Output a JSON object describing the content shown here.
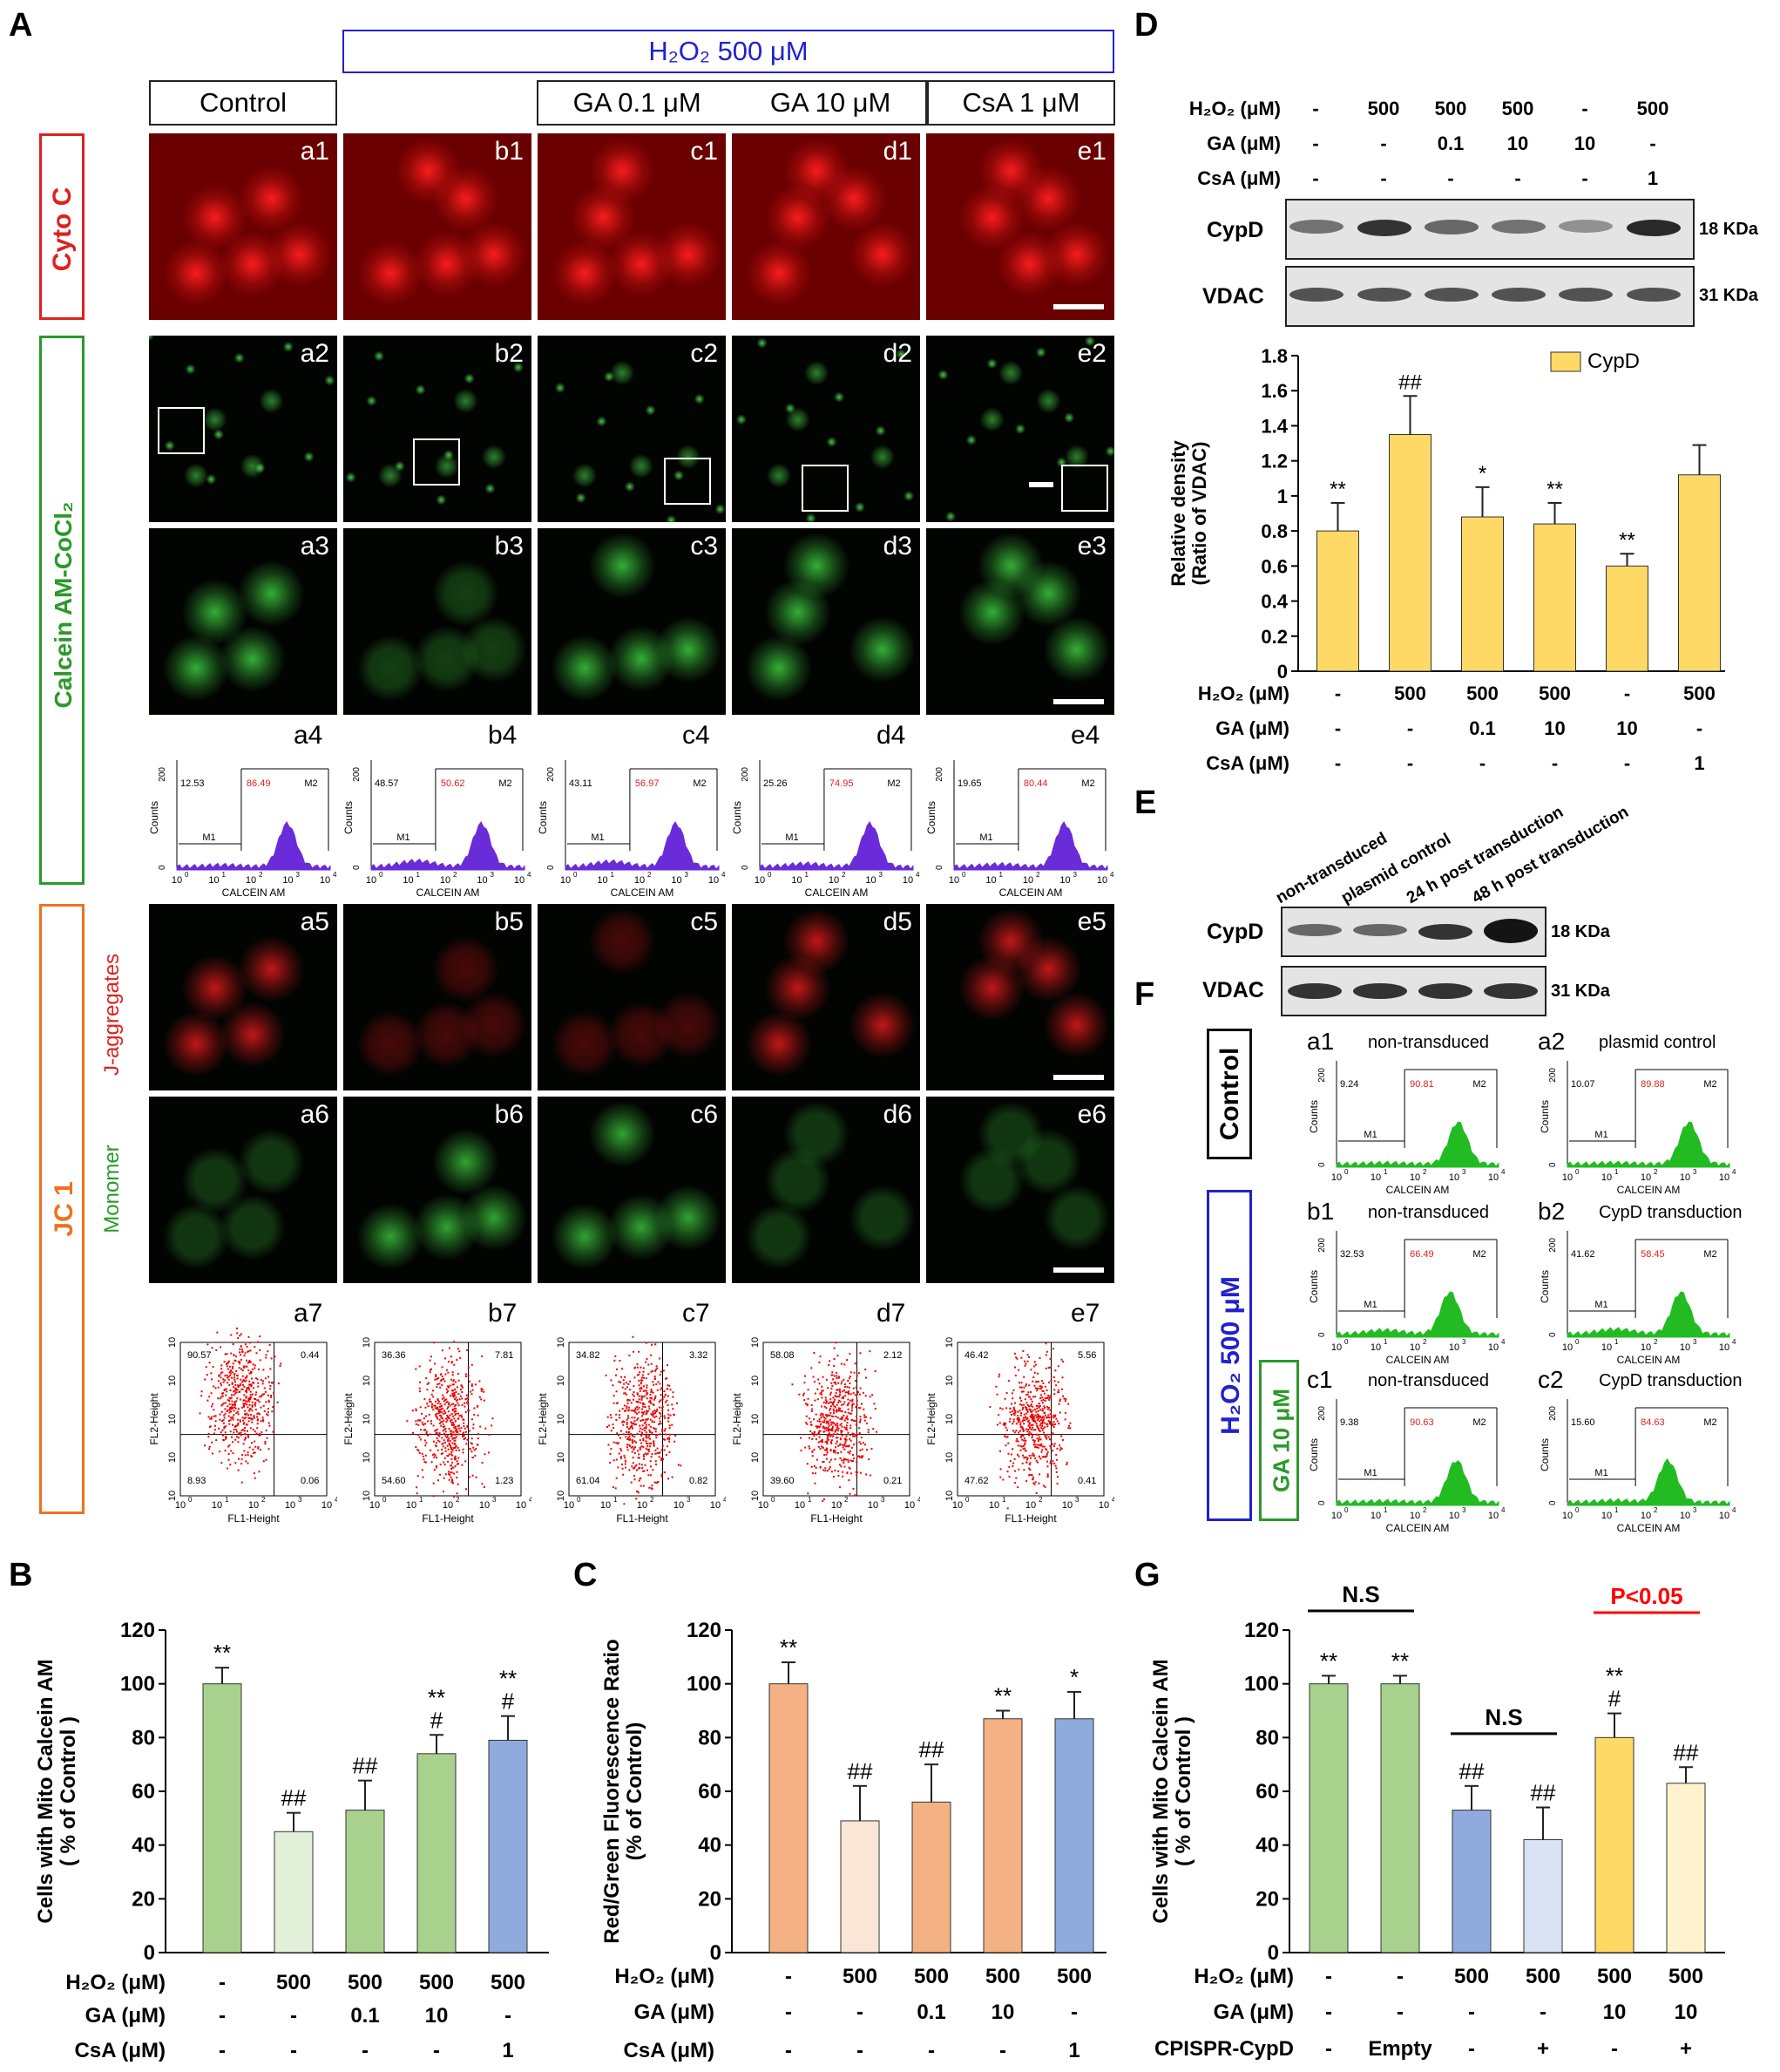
{
  "panel_letters": {
    "A": "A",
    "B": "B",
    "C": "C",
    "D": "D",
    "E": "E",
    "F": "F",
    "G": "G"
  },
  "panelA": {
    "h2o2_header": "H₂O₂ 500 μM",
    "column_headers": [
      "Control",
      "GA 0.1 μM",
      "GA 10 μM",
      "CsA 1 μM"
    ],
    "side_labels": {
      "cytoc": "Cyto C",
      "calcein": "Calcein AM-CoCl₂",
      "jc1": "JC 1",
      "jagg": "J-aggregates",
      "monomer": "Monomer"
    },
    "row_tags": [
      [
        "a1",
        "b1",
        "c1",
        "d1",
        "e1"
      ],
      [
        "a2",
        "b2",
        "c2",
        "d2",
        "e2"
      ],
      [
        "a3",
        "b3",
        "c3",
        "d3",
        "e3"
      ],
      [
        "a4",
        "b4",
        "c4",
        "d4",
        "e4"
      ],
      [
        "a5",
        "b5",
        "c5",
        "d5",
        "e5"
      ],
      [
        "a6",
        "b6",
        "c6",
        "d6",
        "e6"
      ],
      [
        "a7",
        "b7",
        "c7",
        "d7",
        "e7"
      ]
    ],
    "histograms": [
      {
        "m1": "12.53",
        "m2": "86.49"
      },
      {
        "m1": "48.57",
        "m2": "50.62"
      },
      {
        "m1": "43.11",
        "m2": "56.97"
      },
      {
        "m1": "25.26",
        "m2": "74.95"
      },
      {
        "m1": "19.65",
        "m2": "80.44"
      }
    ],
    "hist_labels": {
      "m1": "M1",
      "m2": "M2",
      "ylabel": "Counts",
      "xlabel": "CALCEIN AM",
      "ytop": "200",
      "ybot": "0"
    },
    "scatters": [
      {
        "ul": "90.57",
        "ur": "0.44",
        "ll": "8.93",
        "lr": "0.06"
      },
      {
        "ul": "36.36",
        "ur": "7.81",
        "ll": "54.60",
        "lr": "1.23"
      },
      {
        "ul": "34.82",
        "ur": "3.32",
        "ll": "61.04",
        "lr": "0.82"
      },
      {
        "ul": "58.08",
        "ur": "2.12",
        "ll": "39.60",
        "lr": "0.21"
      },
      {
        "ul": "46.42",
        "ur": "5.56",
        "ll": "47.62",
        "lr": "0.41"
      }
    ],
    "scatter_labels": {
      "xlabel": "FL1-Height",
      "ylabel": "FL2-Height"
    }
  },
  "panelD": {
    "rows": [
      {
        "label": "H₂O₂ (μM)",
        "values": [
          "-",
          "500",
          "500",
          "500",
          "-",
          "500"
        ]
      },
      {
        "label": "GA (μM)",
        "values": [
          "-",
          "-",
          "0.1",
          "10",
          "10",
          "-"
        ]
      },
      {
        "label": "CsA (μM)",
        "values": [
          "-",
          "-",
          "-",
          "-",
          "-",
          "1"
        ]
      }
    ],
    "blots": [
      {
        "name": "CypD",
        "mw": "18 KDa"
      },
      {
        "name": "VDAC",
        "mw": "31 KDa"
      }
    ]
  },
  "panelE": {
    "lanes": [
      "non-transduced",
      "plasmid control",
      "24 h post transduction",
      "48 h post transduction"
    ],
    "blots": [
      {
        "name": "CypD",
        "mw": "18 KDa"
      },
      {
        "name": "VDAC",
        "mw": "31 KDa"
      }
    ]
  },
  "panelF": {
    "side": {
      "control": "Control",
      "h2o2": "H₂O₂ 500 μM",
      "ga": "GA 10 μM"
    },
    "histograms": [
      {
        "tag": "a1",
        "title": "non-transduced",
        "m1": "9.24",
        "m2": "90.81"
      },
      {
        "tag": "a2",
        "title": "plasmid control",
        "m1": "10.07",
        "m2": "89.88"
      },
      {
        "tag": "b1",
        "title": "non-transduced",
        "m1": "32.53",
        "m2": "66.49"
      },
      {
        "tag": "b2",
        "title": "CypD transduction",
        "m1": "41.62",
        "m2": "58.45"
      },
      {
        "tag": "c1",
        "title": "non-transduced",
        "m1": "9.38",
        "m2": "90.63"
      },
      {
        "tag": "c2",
        "title": "CypD transduction",
        "m1": "15.60",
        "m2": "84.63"
      }
    ]
  },
  "chart_data": [
    {
      "panel": "B",
      "type": "bar",
      "ylabel": "Cells with Mito Calcein AM ( % of Control )",
      "ylim": [
        0,
        120
      ],
      "yticks": [
        "0",
        "20",
        "40",
        "60",
        "80",
        "100",
        "120"
      ],
      "values": [
        100,
        45,
        53,
        74,
        79
      ],
      "errors": [
        6,
        7,
        11,
        7,
        9
      ],
      "marks": [
        [
          "**"
        ],
        [
          "##"
        ],
        [
          "##"
        ],
        [
          "**",
          "#"
        ],
        [
          "**",
          "#"
        ]
      ],
      "colors": [
        "#a9d18e",
        "#e2f0d9",
        "#a9d18e",
        "#a9d18e",
        "#8faadc"
      ],
      "rows": [
        {
          "label": "H₂O₂ (μM)",
          "values": [
            "-",
            "500",
            "500",
            "500",
            "500"
          ]
        },
        {
          "label": "GA (μM)",
          "values": [
            "-",
            "-",
            "0.1",
            "10",
            "-"
          ]
        },
        {
          "label": "CsA (μM)",
          "values": [
            "-",
            "-",
            "-",
            "-",
            "1"
          ]
        }
      ]
    },
    {
      "panel": "C",
      "type": "bar",
      "ylabel": "Red/Green Fluorescence Ratio (% of Control)",
      "ylim": [
        0,
        120
      ],
      "yticks": [
        "0",
        "20",
        "40",
        "60",
        "80",
        "100",
        "120"
      ],
      "values": [
        100,
        49,
        56,
        87,
        87
      ],
      "errors": [
        8,
        13,
        14,
        3,
        10
      ],
      "marks": [
        [
          "**"
        ],
        [
          "##"
        ],
        [
          "##"
        ],
        [
          "**"
        ],
        [
          "*"
        ]
      ],
      "colors": [
        "#f4b183",
        "#fbe5d6",
        "#f4b183",
        "#f4b183",
        "#8faadc"
      ],
      "rows": [
        {
          "label": "H₂O₂ (μM)",
          "values": [
            "-",
            "500",
            "500",
            "500",
            "500"
          ]
        },
        {
          "label": "GA (μM)",
          "values": [
            "-",
            "-",
            "0.1",
            "10",
            "-"
          ]
        },
        {
          "label": "CsA (μM)",
          "values": [
            "-",
            "-",
            "-",
            "-",
            "1"
          ]
        }
      ]
    },
    {
      "panel": "D",
      "type": "bar",
      "ylabel": "Relative density (Ratio of VDAC)",
      "ylim": [
        0,
        1.8
      ],
      "yticks": [
        "0",
        "0.2",
        "0.4",
        "0.6",
        "0.8",
        "1",
        "1.2",
        "1.4",
        "1.6",
        "1.8"
      ],
      "legend": "CypD",
      "values": [
        0.8,
        1.35,
        0.88,
        0.84,
        0.6,
        1.12
      ],
      "errors": [
        0.16,
        0.22,
        0.17,
        0.12,
        0.07,
        0.17
      ],
      "marks": [
        [
          "**"
        ],
        [
          "##"
        ],
        [
          "*"
        ],
        [
          "**"
        ],
        [
          "**"
        ],
        []
      ],
      "colors": [
        "#ffd966",
        "#ffd966",
        "#ffd966",
        "#ffd966",
        "#ffd966",
        "#ffd966"
      ],
      "rows": [
        {
          "label": "H₂O₂ (μM)",
          "values": [
            "-",
            "500",
            "500",
            "500",
            "-",
            "500"
          ]
        },
        {
          "label": "GA (μM)",
          "values": [
            "-",
            "-",
            "0.1",
            "10",
            "10",
            "-"
          ]
        },
        {
          "label": "CsA (μM)",
          "values": [
            "-",
            "-",
            "-",
            "-",
            "-",
            "1"
          ]
        }
      ]
    },
    {
      "panel": "G",
      "type": "bar",
      "ylabel": "Cells with Mito Calcein AM ( % of Control )",
      "ylim": [
        0,
        120
      ],
      "yticks": [
        "0",
        "20",
        "40",
        "60",
        "80",
        "100",
        "120"
      ],
      "values": [
        100,
        100,
        53,
        42,
        80,
        63
      ],
      "errors": [
        3,
        3,
        9,
        12,
        9,
        6
      ],
      "marks": [
        [
          "**"
        ],
        [
          "**"
        ],
        [
          "##"
        ],
        [
          "##"
        ],
        [
          "**",
          "#"
        ],
        [
          "##"
        ]
      ],
      "colors": [
        "#a9d18e",
        "#a9d18e",
        "#8faadc",
        "#dae3f3",
        "#ffd966",
        "#fff2cc"
      ],
      "brackets": [
        {
          "from": 0,
          "to": 1,
          "text": "N.S",
          "color": "#000000"
        },
        {
          "from": 2,
          "to": 3,
          "text": "N.S",
          "color": "#000000"
        },
        {
          "from": 4,
          "to": 5,
          "text": "P<0.05",
          "color": "#ff0000"
        }
      ],
      "rows": [
        {
          "label": "H₂O₂ (μM)",
          "values": [
            "-",
            "-",
            "500",
            "500",
            "500",
            "500"
          ]
        },
        {
          "label": "GA (μM)",
          "values": [
            "-",
            "-",
            "-",
            "-",
            "10",
            "10"
          ]
        },
        {
          "label": "CPISPR-CypD",
          "values": [
            "-",
            "Empty",
            "-",
            "+",
            "-",
            "+"
          ]
        }
      ]
    }
  ]
}
